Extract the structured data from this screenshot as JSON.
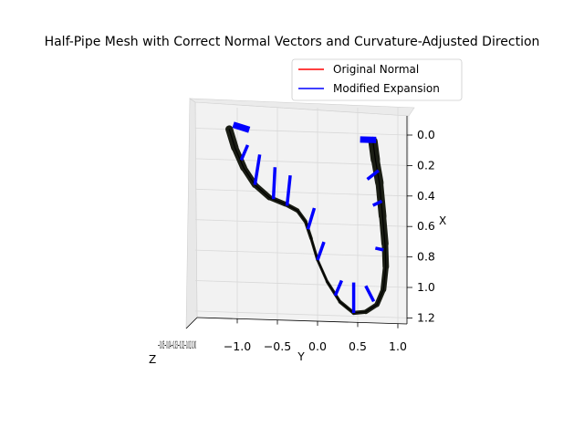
{
  "chart_data": {
    "type": "line",
    "projection": "3d",
    "title": "Half-Pipe Mesh with Correct Normal Vectors and Curvature-Adjusted Direction",
    "xlabel": "X",
    "ylabel": "Y",
    "zlabel": "Z",
    "x_ticks": [
      "0.0",
      "0.2",
      "0.4",
      "0.6",
      "0.8",
      "1.0",
      "1.2"
    ],
    "y_ticks": [
      "−1.0",
      "−0.5",
      "0.0",
      "0.5",
      "1.0"
    ],
    "z_ticks": [
      "0.0",
      "0.2",
      "0.4",
      "0.6",
      "0.8",
      "1.0"
    ],
    "z_ticks_overlapping": "−0.05−0.04−0.03−0.02−0.01 0.00",
    "xlim": [
      -0.05,
      1.25
    ],
    "ylim": [
      -1.15,
      1.05
    ],
    "grid": true,
    "legend": {
      "placement": "top-right",
      "entries": [
        {
          "label": "Original Normal",
          "color": "#ff0000"
        },
        {
          "label": "Modified Expansion",
          "color": "#0000ff"
        }
      ]
    },
    "mesh_centerline": {
      "color": "#000000",
      "points": [
        {
          "y": -1.1,
          "x": -0.02
        },
        {
          "y": -1.03,
          "x": 0.1
        },
        {
          "y": -0.92,
          "x": 0.23
        },
        {
          "y": -0.78,
          "x": 0.34
        },
        {
          "y": -0.6,
          "x": 0.42
        },
        {
          "y": -0.4,
          "x": 0.46
        },
        {
          "y": -0.25,
          "x": 0.5
        },
        {
          "y": -0.15,
          "x": 0.57
        },
        {
          "y": -0.08,
          "x": 0.68
        },
        {
          "y": 0.0,
          "x": 0.82
        },
        {
          "y": 0.12,
          "x": 0.96
        },
        {
          "y": 0.28,
          "x": 1.09
        },
        {
          "y": 0.45,
          "x": 1.16
        },
        {
          "y": 0.6,
          "x": 1.15
        },
        {
          "y": 0.74,
          "x": 1.1
        },
        {
          "y": 0.82,
          "x": 1.0
        },
        {
          "y": 0.85,
          "x": 0.85
        },
        {
          "y": 0.84,
          "x": 0.7
        },
        {
          "y": 0.81,
          "x": 0.52
        },
        {
          "y": 0.77,
          "x": 0.3
        },
        {
          "y": 0.72,
          "x": 0.15
        },
        {
          "y": 0.69,
          "x": 0.03
        }
      ]
    },
    "vectors": {
      "color": "#0000ff",
      "items": [
        {
          "y": -1.05,
          "x": -0.05,
          "dy": 0.2,
          "dx": 0.03
        },
        {
          "y": -0.95,
          "x": 0.18,
          "dy": 0.08,
          "dx": -0.1
        },
        {
          "y": -0.78,
          "x": 0.34,
          "dy": 0.06,
          "dx": -0.2
        },
        {
          "y": -0.55,
          "x": 0.43,
          "dy": 0.02,
          "dx": -0.21
        },
        {
          "y": -0.38,
          "x": 0.47,
          "dy": 0.04,
          "dx": -0.2
        },
        {
          "y": -0.12,
          "x": 0.62,
          "dy": 0.08,
          "dx": -0.14
        },
        {
          "y": 0.0,
          "x": 0.82,
          "dy": 0.08,
          "dx": -0.12
        },
        {
          "y": 0.22,
          "x": 1.05,
          "dy": 0.08,
          "dx": -0.1
        },
        {
          "y": 0.45,
          "x": 1.16,
          "dy": 0.0,
          "dx": -0.2
        },
        {
          "y": 0.7,
          "x": 1.08,
          "dy": -0.1,
          "dx": -0.1
        },
        {
          "y": 0.82,
          "x": 0.74,
          "dy": -0.1,
          "dx": -0.01
        },
        {
          "y": 0.8,
          "x": 0.42,
          "dy": -0.11,
          "dx": 0.03
        },
        {
          "y": 0.76,
          "x": 0.22,
          "dy": -0.14,
          "dx": 0.06
        },
        {
          "y": 0.73,
          "x": 0.02,
          "dy": -0.2,
          "dx": 0.0
        }
      ]
    }
  }
}
